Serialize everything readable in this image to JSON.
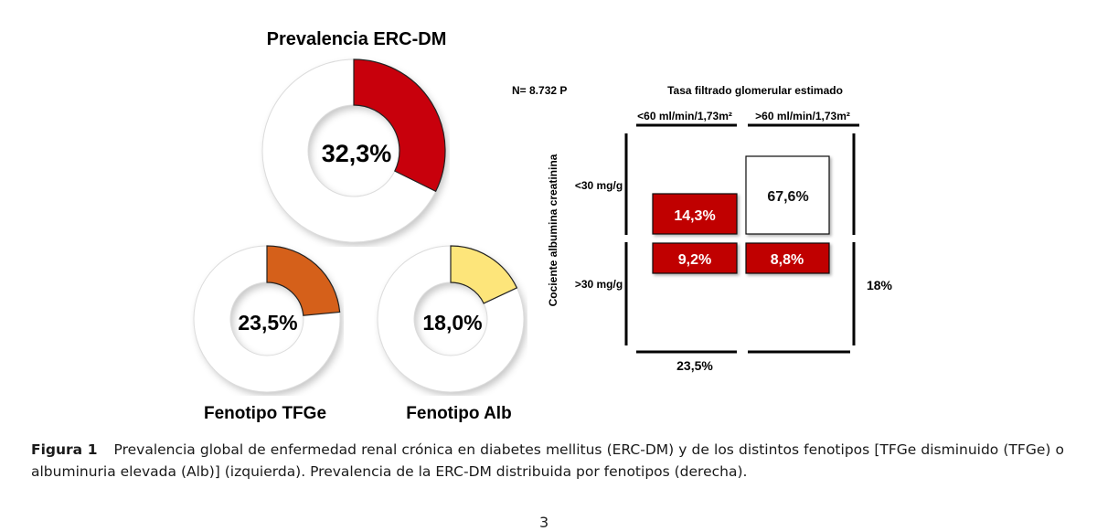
{
  "chart_data": [
    {
      "type": "pie",
      "variant": "donut",
      "title": "Prevalencia ERC-DM",
      "value": 32.3,
      "label": "32,3%",
      "color": "#c8000c"
    },
    {
      "type": "pie",
      "variant": "donut",
      "title": "Fenotipo TFGe",
      "value": 23.5,
      "label": "23,5%",
      "color": "#d5601a"
    },
    {
      "type": "pie",
      "variant": "donut",
      "title": "Fenotipo Alb",
      "value": 18.0,
      "label": "18,0%",
      "color": "#fde57a"
    },
    {
      "type": "table",
      "n_label": "N= 8.732 P",
      "column_title": "Tasa filtrado glomerular estimado",
      "columns": [
        "<60 ml/min/1,73m²",
        ">60 ml/min/1,73m²"
      ],
      "row_title": "Cociente albumina creatinina",
      "rows": [
        "<30 mg/g",
        ">30 mg/g"
      ],
      "cells": [
        {
          "row": 0,
          "col": 0,
          "value": 14.3,
          "label": "14,3%",
          "highlight": true
        },
        {
          "row": 0,
          "col": 1,
          "value": 67.6,
          "label": "67,6%",
          "highlight": false
        },
        {
          "row": 1,
          "col": 0,
          "value": 9.2,
          "label": "9,2%",
          "highlight": true
        },
        {
          "row": 1,
          "col": 1,
          "value": 8.8,
          "label": "8,8%",
          "highlight": true
        }
      ],
      "column_total_label": "23,5%",
      "row_total_label": "18%",
      "highlight_color": "#c00000"
    }
  ],
  "caption": {
    "label": "Figura 1",
    "text": "Prevalencia global de enfermedad renal crónica en diabetes mellitus (ERC-DM) y de los distintos fenotipos [TFGe disminuido (TFGe) o albuminuria elevada (Alb)] (izquierda). Prevalencia de la ERC-DM distribuida por fenotipos (derecha)."
  },
  "page_number": "3"
}
